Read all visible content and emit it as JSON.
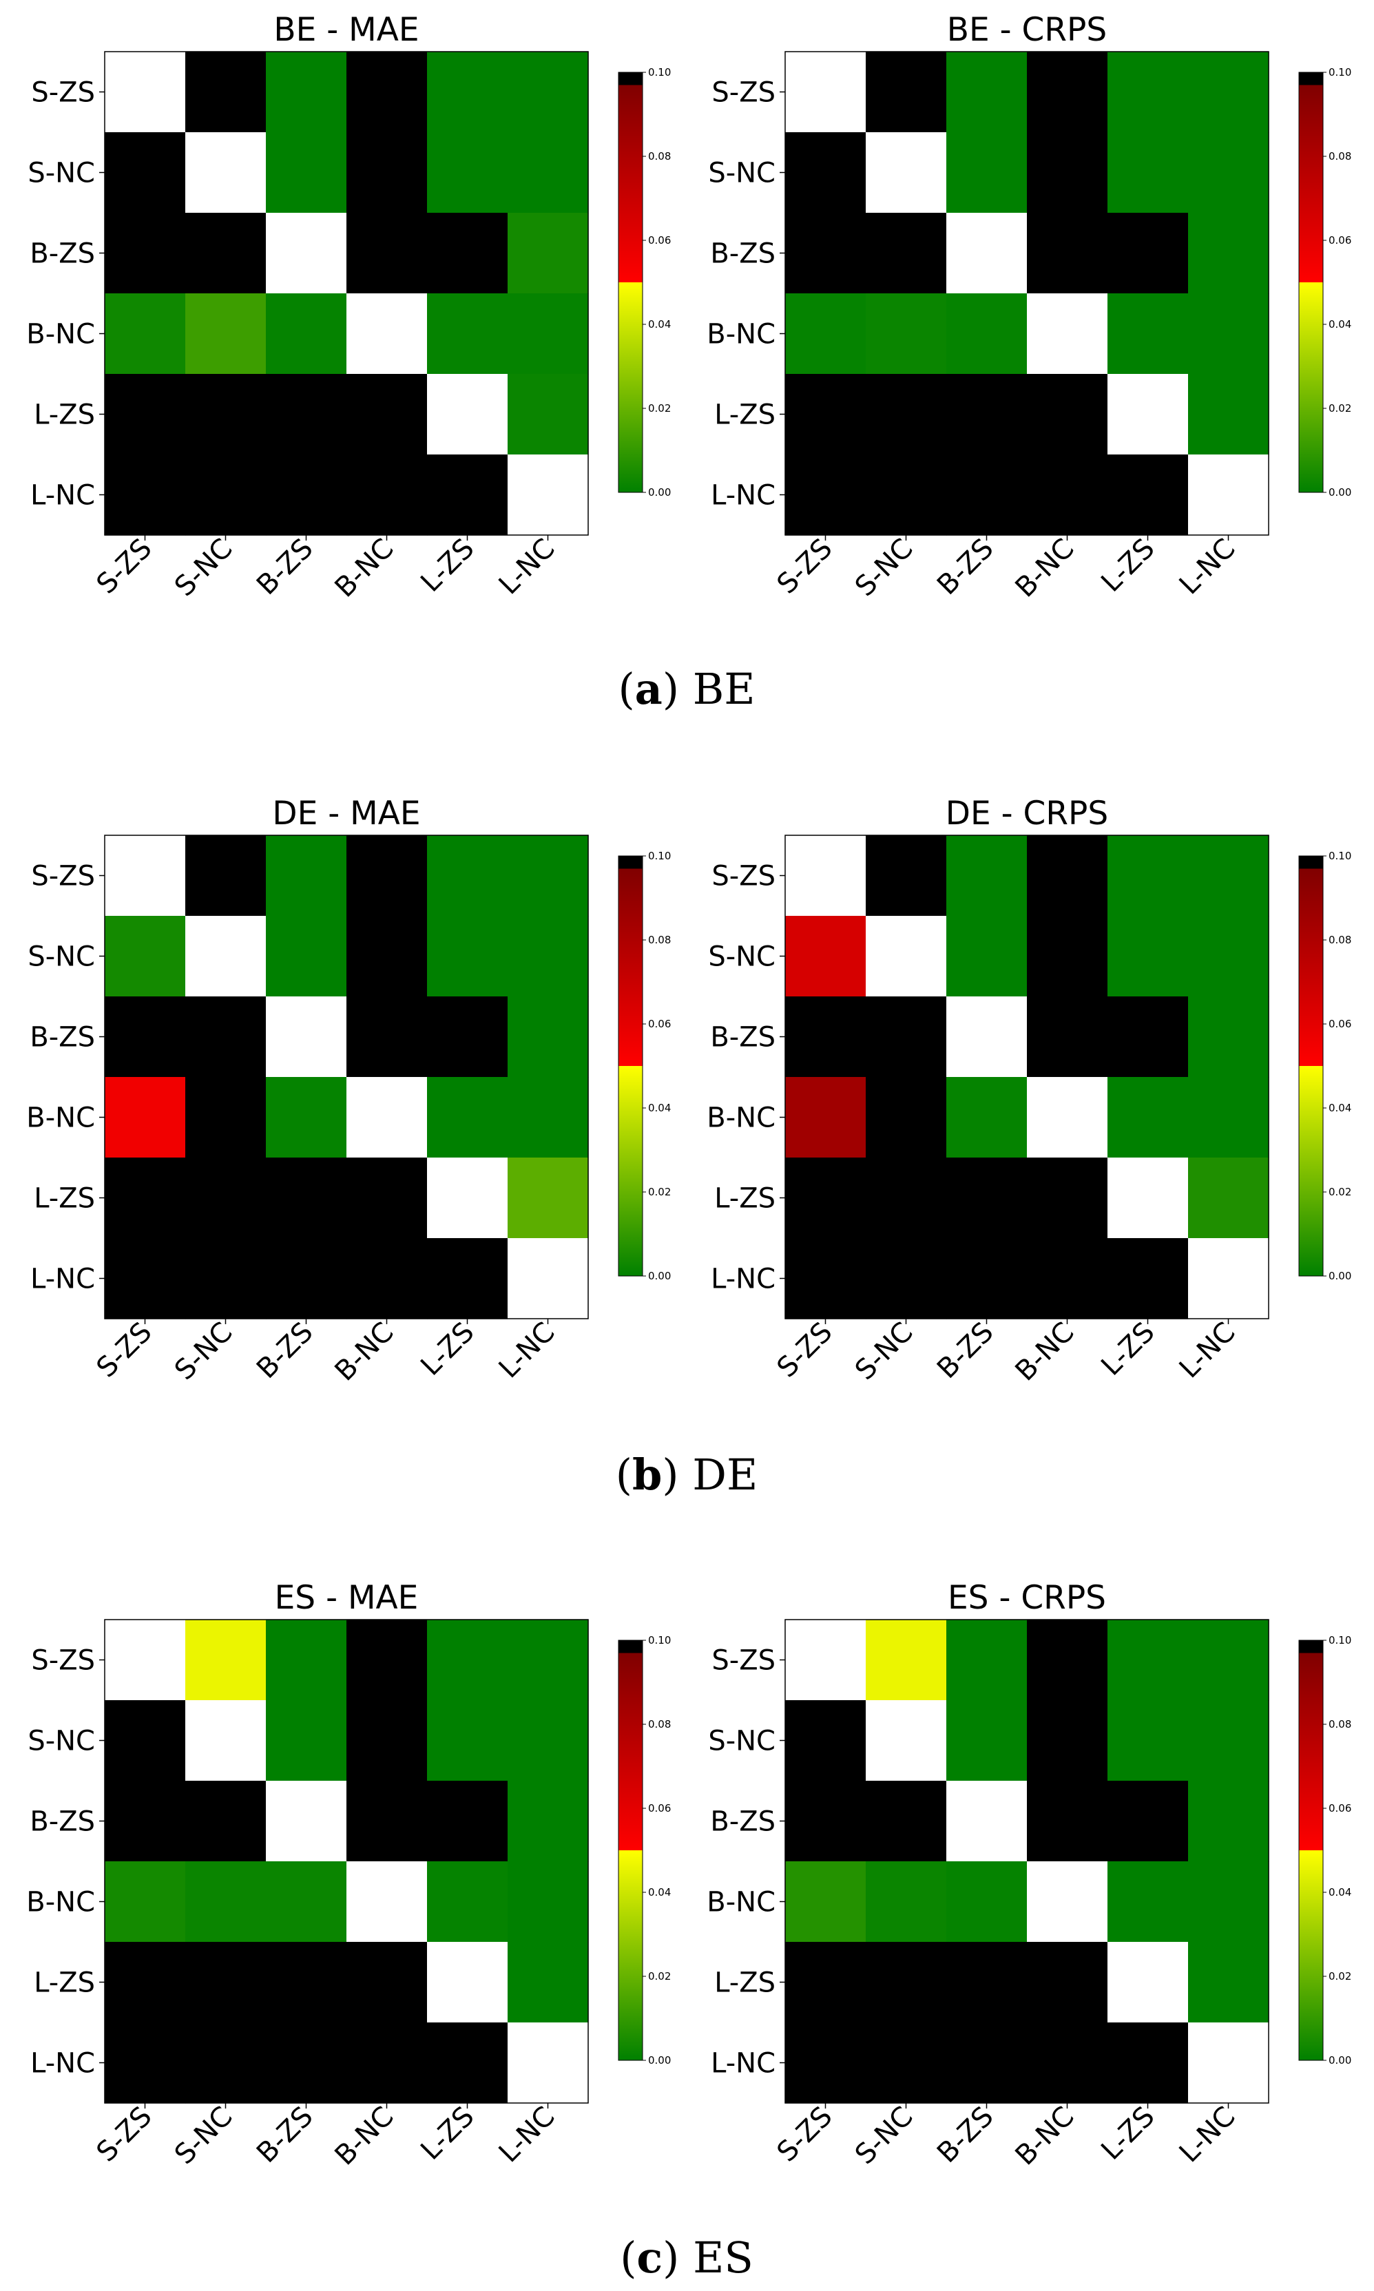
{
  "labels": [
    "S-ZS",
    "S-NC",
    "B-ZS",
    "B-NC",
    "L-ZS",
    "L-NC"
  ],
  "colorbar": {
    "ticks": [
      "0.00",
      "0.02",
      "0.04",
      "0.06",
      "0.08",
      "0.10"
    ],
    "range": [
      0,
      0.1
    ],
    "stops": [
      "#008000",
      "#ffff00",
      "#ff0000",
      "#800000",
      "#000000"
    ]
  },
  "captions": [
    {
      "letter": "a",
      "text": "BE"
    },
    {
      "letter": "b",
      "text": "DE"
    },
    {
      "letter": "c",
      "text": "ES"
    }
  ],
  "chart_data": [
    {
      "type": "heatmap",
      "title": "BE - MAE",
      "x": [
        "S-ZS",
        "S-NC",
        "B-ZS",
        "B-NC",
        "L-ZS",
        "L-NC"
      ],
      "y": [
        "S-ZS",
        "S-NC",
        "B-ZS",
        "B-NC",
        "L-ZS",
        "L-NC"
      ],
      "values": [
        [
          null,
          1,
          0,
          1,
          0,
          0
        ],
        [
          1,
          null,
          0,
          1,
          0,
          0
        ],
        [
          1,
          1,
          null,
          1,
          1,
          0.004
        ],
        [
          0.003,
          0.012,
          0.001,
          null,
          0.001,
          0.001
        ],
        [
          1,
          1,
          1,
          1,
          null,
          0.002
        ],
        [
          1,
          1,
          1,
          1,
          1,
          null
        ]
      ]
    },
    {
      "type": "heatmap",
      "title": "BE - CRPS",
      "x": [
        "S-ZS",
        "S-NC",
        "B-ZS",
        "B-NC",
        "L-ZS",
        "L-NC"
      ],
      "y": [
        "S-ZS",
        "S-NC",
        "B-ZS",
        "B-NC",
        "L-ZS",
        "L-NC"
      ],
      "values": [
        [
          null,
          1,
          0,
          1,
          0,
          0
        ],
        [
          1,
          null,
          0,
          1,
          0,
          0
        ],
        [
          1,
          1,
          null,
          1,
          1,
          0
        ],
        [
          0.001,
          0.002,
          0.001,
          null,
          0,
          0
        ],
        [
          1,
          1,
          1,
          1,
          null,
          0
        ],
        [
          1,
          1,
          1,
          1,
          1,
          null
        ]
      ]
    },
    {
      "type": "heatmap",
      "title": "DE - MAE",
      "x": [
        "S-ZS",
        "S-NC",
        "B-ZS",
        "B-NC",
        "L-ZS",
        "L-NC"
      ],
      "y": [
        "S-ZS",
        "S-NC",
        "B-ZS",
        "B-NC",
        "L-ZS",
        "L-NC"
      ],
      "values": [
        [
          null,
          1,
          0,
          1,
          0,
          0
        ],
        [
          0.004,
          null,
          0,
          1,
          0,
          0
        ],
        [
          1,
          1,
          null,
          1,
          1,
          0
        ],
        [
          0.055,
          1,
          0.001,
          null,
          0,
          0
        ],
        [
          1,
          1,
          1,
          1,
          null,
          0.018
        ],
        [
          1,
          1,
          1,
          1,
          1,
          null
        ]
      ]
    },
    {
      "type": "heatmap",
      "title": "DE - CRPS",
      "x": [
        "S-ZS",
        "S-NC",
        "B-ZS",
        "B-NC",
        "L-ZS",
        "L-NC"
      ],
      "y": [
        "S-ZS",
        "S-NC",
        "B-ZS",
        "B-NC",
        "L-ZS",
        "L-NC"
      ],
      "values": [
        [
          null,
          1,
          0,
          1,
          0,
          0
        ],
        [
          0.065,
          null,
          0,
          1,
          0,
          0
        ],
        [
          1,
          1,
          null,
          1,
          1,
          0
        ],
        [
          0.085,
          1,
          0.001,
          null,
          0,
          0
        ],
        [
          1,
          1,
          1,
          1,
          null,
          0.006
        ],
        [
          1,
          1,
          1,
          1,
          1,
          null
        ]
      ]
    },
    {
      "type": "heatmap",
      "title": "ES - MAE",
      "x": [
        "S-ZS",
        "S-NC",
        "B-ZS",
        "B-NC",
        "L-ZS",
        "L-NC"
      ],
      "y": [
        "S-ZS",
        "S-NC",
        "B-ZS",
        "B-NC",
        "L-ZS",
        "L-NC"
      ],
      "values": [
        [
          null,
          0.046,
          0,
          1,
          0,
          0
        ],
        [
          1,
          null,
          0,
          1,
          0,
          0
        ],
        [
          1,
          1,
          null,
          1,
          1,
          0
        ],
        [
          0.004,
          0.002,
          0.002,
          null,
          0.001,
          0
        ],
        [
          1,
          1,
          1,
          1,
          null,
          0
        ],
        [
          1,
          1,
          1,
          1,
          1,
          null
        ]
      ]
    },
    {
      "type": "heatmap",
      "title": "ES - CRPS",
      "x": [
        "S-ZS",
        "S-NC",
        "B-ZS",
        "B-NC",
        "L-ZS",
        "L-NC"
      ],
      "y": [
        "S-ZS",
        "S-NC",
        "B-ZS",
        "B-NC",
        "L-ZS",
        "L-NC"
      ],
      "values": [
        [
          null,
          0.046,
          0,
          1,
          0,
          0
        ],
        [
          1,
          null,
          0,
          1,
          0,
          0
        ],
        [
          1,
          1,
          null,
          1,
          1,
          0
        ],
        [
          0.007,
          0.002,
          0.001,
          null,
          0,
          0
        ],
        [
          1,
          1,
          1,
          1,
          null,
          0
        ],
        [
          1,
          1,
          1,
          1,
          1,
          null
        ]
      ]
    }
  ]
}
